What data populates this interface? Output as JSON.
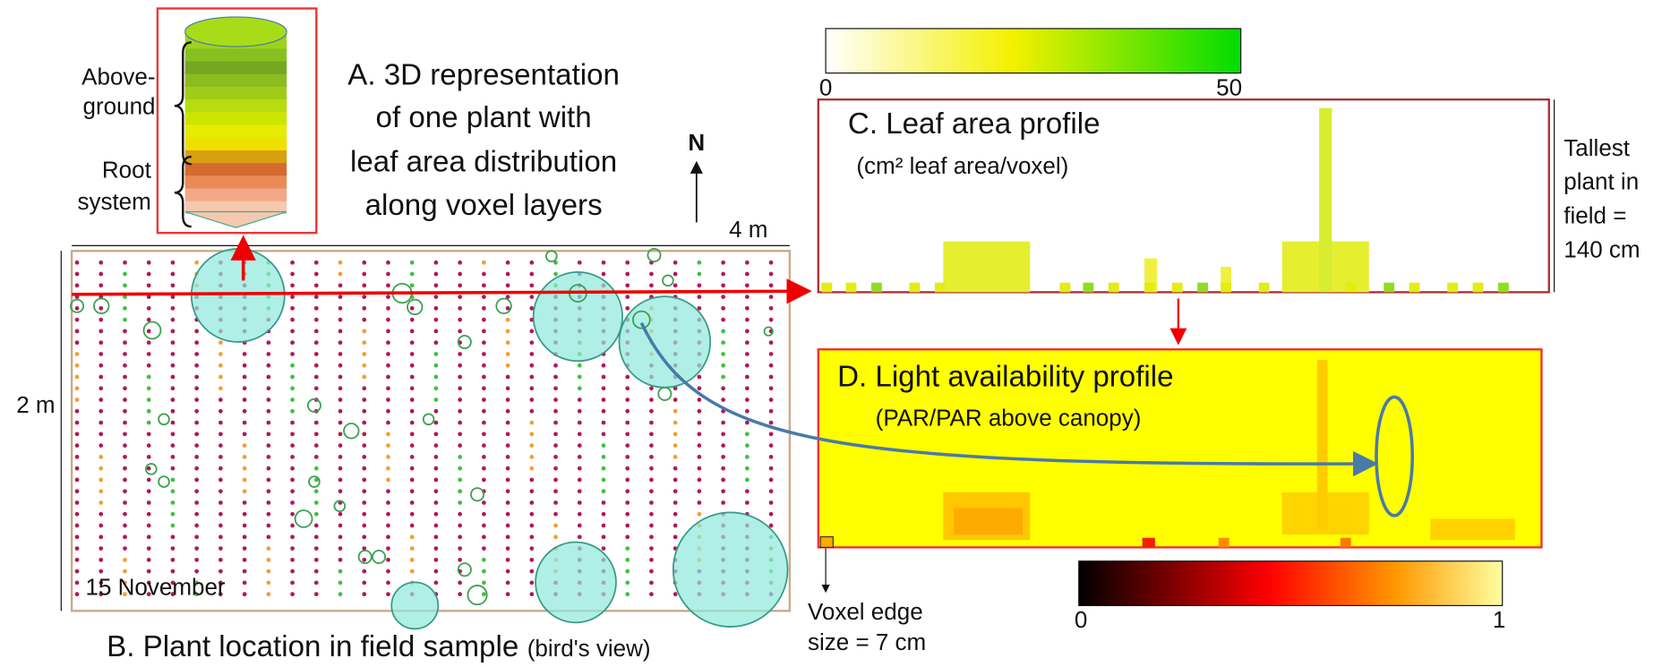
{
  "panel_a": {
    "title_lines": [
      "A. 3D representation",
      "of one plant with",
      "leaf area distribution",
      "along voxel layers"
    ],
    "above_label": [
      "Above-",
      "ground"
    ],
    "root_label": [
      "Root",
      "system"
    ]
  },
  "panel_b": {
    "caption": "B. Plant location in field sample",
    "caption_note": "(bird's view)",
    "date": "15 November",
    "width_label": "4 m",
    "height_label": "2 m",
    "north": "N"
  },
  "panel_c": {
    "title": "C. Leaf area profile",
    "unit": "(cm² leaf area/voxel)",
    "colorbar_ticks": [
      "0",
      "50"
    ],
    "height_note": [
      "Tallest",
      "plant in",
      "field =",
      "140 cm"
    ]
  },
  "panel_d": {
    "title": "D. Light availability profile",
    "unit": "(PAR/PAR above canopy)",
    "colorbar_ticks": [
      "0",
      "1"
    ],
    "voxel_note": [
      "Voxel edge",
      "size = 7 cm"
    ]
  }
}
